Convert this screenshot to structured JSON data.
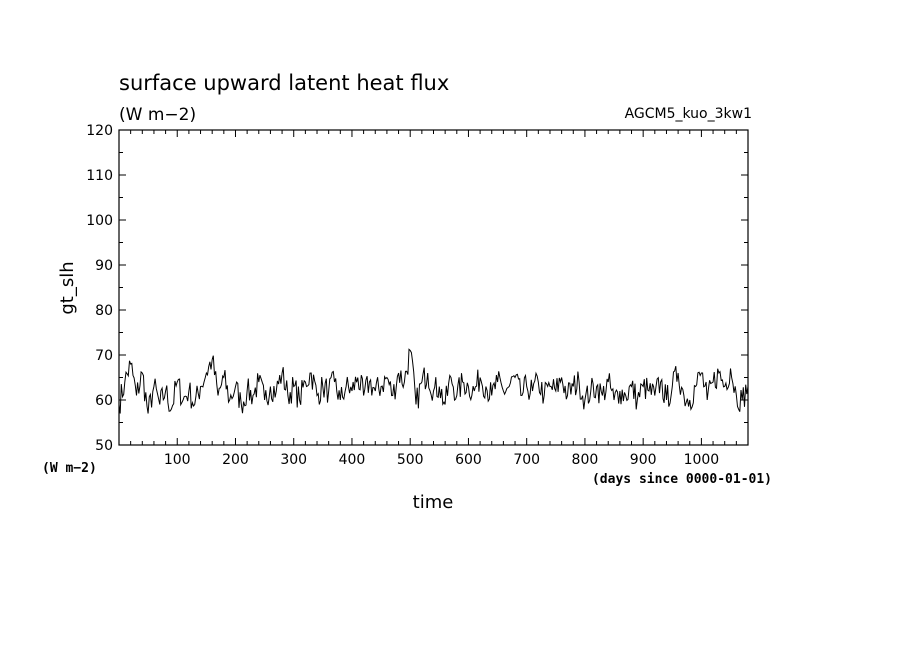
{
  "chart_data": {
    "type": "line",
    "title": "surface upward latent heat flux",
    "subtitle_units": "(W m−2)",
    "experiment": "AGCM5_kuo_3kw1",
    "xlabel": "time",
    "x_units": "(days since 0000-01-01)",
    "ylabel": "gt_slh",
    "y_units": "(W m−2)",
    "xlim": [
      0,
      1080
    ],
    "ylim": [
      50,
      120
    ],
    "x_ticks": [
      100,
      200,
      300,
      400,
      500,
      600,
      700,
      800,
      900,
      1000
    ],
    "y_ticks": [
      50,
      60,
      70,
      80,
      90,
      100,
      110,
      120
    ],
    "grid": false,
    "series": [
      {
        "x": [
          0,
          10,
          20,
          30,
          40,
          50,
          60,
          70,
          80,
          90,
          100,
          110,
          120,
          130,
          140,
          150,
          160,
          170,
          180,
          190,
          200,
          210,
          220,
          230,
          240,
          250,
          260,
          270,
          280,
          290,
          300,
          310,
          320,
          330,
          340,
          350,
          360,
          370,
          380,
          390,
          400,
          410,
          420,
          430,
          440,
          450,
          460,
          470,
          480,
          490,
          500,
          510,
          520,
          530,
          540,
          550,
          560,
          570,
          580,
          590,
          600,
          610,
          620,
          630,
          640,
          650,
          660,
          670,
          680,
          690,
          700,
          710,
          720,
          730,
          740,
          750,
          760,
          770,
          780,
          790,
          800,
          810,
          820,
          830,
          840,
          850,
          860,
          870,
          880,
          890,
          900,
          910,
          920,
          930,
          940,
          950,
          960,
          970,
          980,
          990,
          1000,
          1010,
          1020,
          1030,
          1040,
          1050,
          1060,
          1070,
          1080
        ],
        "y": [
          59,
          64,
          68,
          61,
          66,
          57,
          63,
          59,
          62,
          58,
          64,
          60,
          62,
          59,
          63,
          66,
          69,
          61,
          65,
          60,
          63,
          59,
          62,
          61,
          64,
          60,
          63,
          62,
          66,
          61,
          63,
          60,
          64,
          66,
          61,
          63,
          62,
          64,
          60,
          63,
          62,
          65,
          61,
          64,
          62,
          63,
          65,
          61,
          66,
          64,
          71,
          59,
          64,
          66,
          62,
          63,
          59,
          65,
          61,
          64,
          63,
          62,
          65,
          63,
          61,
          64,
          62,
          63,
          65,
          61,
          63,
          62,
          64,
          61,
          63,
          62,
          65,
          61,
          63,
          64,
          60,
          62,
          63,
          61,
          64,
          60,
          62,
          61,
          63,
          60,
          63,
          62,
          61,
          64,
          60,
          63,
          66,
          61,
          60,
          63,
          66,
          60,
          64,
          66,
          63,
          67,
          61,
          60,
          63
        ]
      }
    ]
  }
}
